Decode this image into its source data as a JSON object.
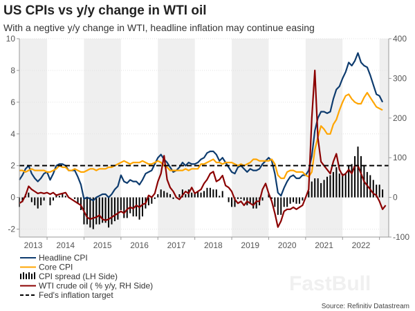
{
  "chart_data": {
    "type": "line",
    "title": "US CPIs vs y/y change in WTI oil",
    "subtitle": "With a negtive y/y change in WTI, headline inflation may continue easing",
    "source": "Source: Refinitiv Datastream",
    "watermark": "FastBull",
    "x_range": [
      "2013-04",
      "2023-04"
    ],
    "x_tick_labels": [
      "2013",
      "2014",
      "2015",
      "2016",
      "2017",
      "2018",
      "2019",
      "2020",
      "2021",
      "2022"
    ],
    "y_left": {
      "range": [
        -2.5,
        10
      ],
      "ticks": [
        -2,
        0,
        2,
        4,
        6,
        8,
        10
      ]
    },
    "y_right": {
      "range": [
        -100,
        400
      ],
      "ticks": [
        -100,
        0,
        100,
        200,
        300,
        400
      ]
    },
    "grid": "horizontal dotted",
    "shaded_years": [
      "2013",
      "2015",
      "2017",
      "2019",
      "2021",
      "2023"
    ],
    "legend_placement": "bottom-left",
    "start_month": "2013-04",
    "series": [
      {
        "name": "Headline CPI",
        "axis": "left",
        "kind": "line",
        "color": "#0d3b6e",
        "values": [
          1.1,
          1.4,
          1.8,
          2.0,
          1.5,
          1.2,
          1.0,
          1.2,
          1.5,
          1.6,
          1.1,
          1.5,
          2.0,
          2.1,
          2.1,
          2.0,
          1.7,
          1.7,
          1.7,
          1.3,
          0.8,
          -0.1,
          0.0,
          -0.1,
          -0.2,
          0.0,
          0.1,
          0.2,
          0.2,
          0.0,
          0.2,
          0.5,
          0.7,
          1.4,
          1.0,
          0.9,
          1.1,
          1.0,
          1.0,
          0.8,
          1.1,
          1.5,
          1.6,
          1.7,
          2.1,
          2.5,
          2.7,
          2.4,
          2.2,
          1.9,
          1.6,
          1.7,
          1.9,
          2.2,
          2.0,
          2.2,
          2.1,
          2.1,
          2.2,
          2.4,
          2.5,
          2.8,
          2.9,
          2.9,
          2.7,
          2.3,
          2.5,
          2.2,
          1.9,
          1.6,
          1.5,
          1.9,
          2.0,
          1.8,
          1.6,
          1.8,
          1.7,
          1.7,
          1.8,
          2.1,
          2.3,
          2.5,
          2.3,
          1.5,
          0.3,
          0.1,
          0.6,
          1.0,
          1.3,
          1.4,
          1.2,
          1.2,
          1.4,
          1.4,
          1.7,
          2.6,
          4.2,
          5.0,
          5.4,
          5.4,
          5.3,
          5.4,
          6.2,
          6.8,
          7.0,
          7.5,
          7.9,
          8.5,
          8.3,
          8.6,
          9.1,
          8.5,
          8.3,
          8.2,
          7.7,
          7.1,
          6.5,
          6.4,
          6.0
        ]
      },
      {
        "name": "Core CPI",
        "axis": "left",
        "kind": "line",
        "color": "#ffa500",
        "values": [
          1.7,
          1.7,
          1.6,
          1.7,
          1.8,
          1.7,
          1.7,
          1.7,
          1.7,
          1.6,
          1.6,
          1.7,
          1.8,
          2.0,
          1.9,
          1.9,
          1.7,
          1.7,
          1.8,
          1.7,
          1.6,
          1.6,
          1.7,
          1.8,
          1.8,
          1.7,
          1.8,
          1.8,
          1.8,
          1.9,
          1.9,
          2.0,
          2.1,
          2.2,
          2.3,
          2.2,
          2.1,
          2.2,
          2.2,
          2.2,
          2.3,
          2.2,
          2.1,
          2.1,
          2.2,
          2.3,
          2.2,
          2.0,
          1.9,
          1.7,
          1.7,
          1.7,
          1.7,
          1.7,
          1.8,
          1.7,
          1.8,
          1.8,
          1.8,
          2.1,
          2.1,
          2.2,
          2.3,
          2.4,
          2.2,
          2.2,
          2.1,
          2.2,
          2.2,
          2.2,
          2.1,
          2.0,
          2.1,
          2.0,
          2.1,
          2.2,
          2.4,
          2.4,
          2.3,
          2.3,
          2.3,
          2.3,
          2.4,
          2.1,
          1.4,
          1.2,
          1.2,
          1.6,
          1.7,
          1.7,
          1.6,
          1.6,
          1.6,
          1.4,
          1.3,
          1.6,
          3.0,
          3.8,
          4.5,
          4.3,
          4.0,
          4.0,
          4.6,
          4.9,
          5.5,
          6.0,
          6.4,
          6.5,
          6.2,
          6.0,
          5.9,
          5.9,
          6.3,
          6.6,
          6.3,
          6.0,
          5.7,
          5.6,
          5.5
        ]
      },
      {
        "name": "CPI spread (LH Side)",
        "axis": "left",
        "kind": "bar",
        "color": "#000000",
        "values": [
          -0.6,
          -0.3,
          0.2,
          0.3,
          -0.3,
          -0.5,
          -0.7,
          -0.5,
          -0.2,
          0.0,
          -0.5,
          -0.2,
          0.2,
          0.1,
          0.2,
          0.1,
          0.0,
          0.0,
          -0.1,
          -0.4,
          -0.8,
          -1.7,
          -1.7,
          -1.9,
          -2.0,
          -1.7,
          -1.7,
          -1.6,
          -1.6,
          -1.9,
          -1.7,
          -1.5,
          -1.4,
          -0.8,
          -1.3,
          -1.3,
          -1.0,
          -1.2,
          -1.2,
          -1.4,
          -1.2,
          -0.7,
          -0.5,
          -0.4,
          -0.1,
          0.2,
          0.5,
          0.4,
          0.3,
          0.2,
          -0.1,
          0.0,
          0.2,
          0.5,
          0.2,
          0.5,
          0.3,
          0.3,
          0.4,
          0.3,
          0.4,
          0.6,
          0.6,
          0.5,
          0.5,
          0.1,
          0.4,
          0.0,
          -0.3,
          -0.6,
          -0.6,
          -0.1,
          -0.1,
          -0.2,
          -0.5,
          -0.4,
          -0.7,
          -0.7,
          -0.5,
          -0.2,
          0.0,
          0.2,
          -0.1,
          -0.6,
          -1.1,
          -1.1,
          -0.6,
          -0.6,
          -0.4,
          -0.3,
          -0.4,
          -0.4,
          -0.2,
          0.0,
          0.4,
          1.0,
          1.2,
          1.2,
          0.9,
          1.1,
          1.3,
          1.4,
          1.6,
          1.9,
          1.5,
          1.5,
          1.5,
          2.0,
          2.1,
          2.6,
          3.2,
          2.6,
          2.0,
          1.6,
          1.4,
          1.1,
          0.8,
          0.8,
          0.5
        ]
      },
      {
        "name": "WTI crude oil ( % y/y, RH Side)",
        "axis": "right",
        "kind": "line",
        "color": "#8b0000",
        "values": [
          -15,
          -10,
          5,
          28,
          20,
          15,
          10,
          12,
          10,
          12,
          8,
          12,
          5,
          8,
          10,
          12,
          0,
          -5,
          -10,
          -15,
          -20,
          -35,
          -50,
          -55,
          -52,
          -50,
          -45,
          -55,
          -58,
          -55,
          -50,
          -45,
          -40,
          -35,
          -40,
          -30,
          -25,
          -28,
          -20,
          -25,
          -18,
          -15,
          5,
          0,
          10,
          40,
          60,
          105,
          45,
          25,
          15,
          0,
          -5,
          5,
          15,
          10,
          25,
          10,
          15,
          20,
          35,
          45,
          60,
          65,
          40,
          45,
          55,
          30,
          25,
          15,
          -5,
          -15,
          -10,
          -20,
          -10,
          -15,
          -20,
          -10,
          -10,
          20,
          35,
          10,
          -10,
          -40,
          -75,
          -60,
          -35,
          -30,
          -30,
          -25,
          -30,
          -25,
          -20,
          0,
          20,
          200,
          320,
          150,
          90,
          80,
          70,
          60,
          90,
          110,
          70,
          55,
          60,
          70,
          60,
          80,
          80,
          60,
          40,
          30,
          20,
          10,
          5,
          -10,
          -30,
          -20
        ]
      },
      {
        "name": "Fed's inflation target",
        "axis": "left",
        "kind": "hline",
        "color": "#000000",
        "value": 2
      }
    ]
  }
}
